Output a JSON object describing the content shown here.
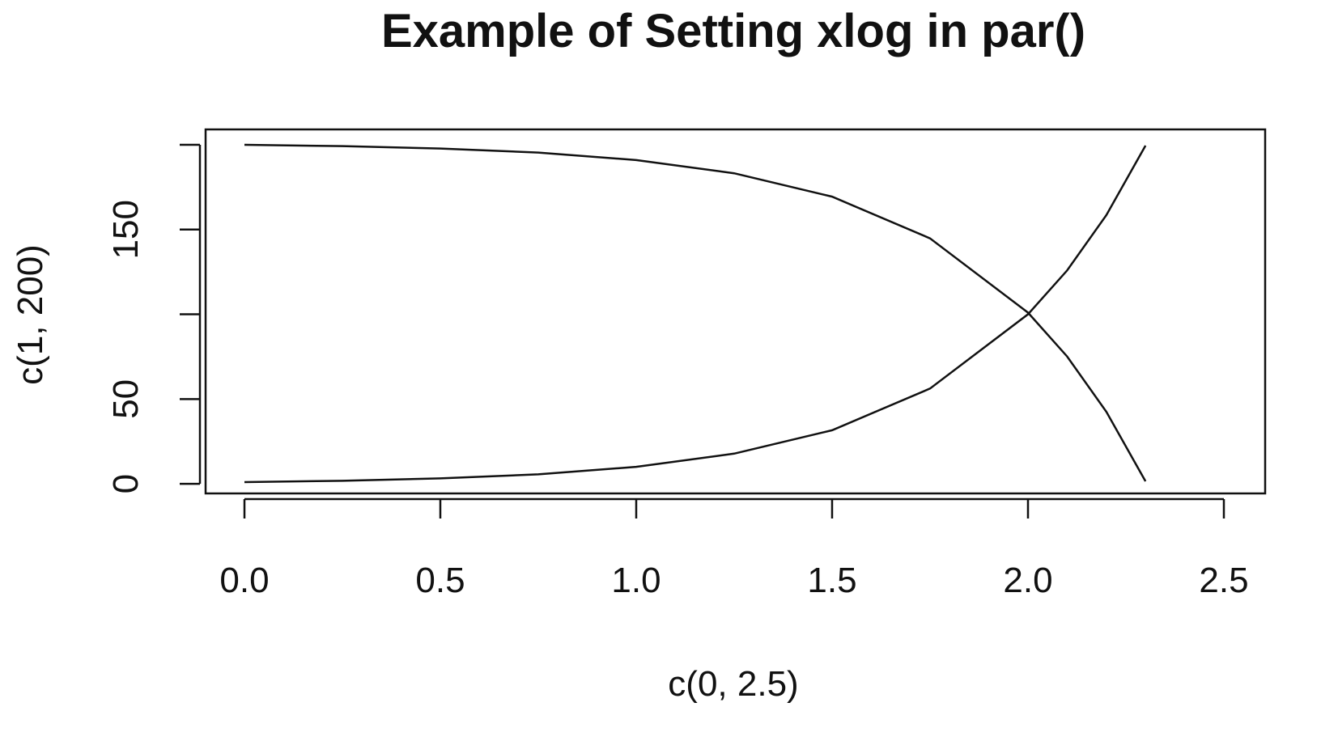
{
  "chart_data": {
    "type": "line",
    "title": "Example of Setting xlog in par()",
    "xlabel": "c(0, 2.5)",
    "ylabel": "c(1, 200)",
    "xlim": [
      0,
      2.5
    ],
    "ylim": [
      1,
      200
    ],
    "x_ticks": [
      "0.0",
      "0.5",
      "1.0",
      "1.5",
      "2.0",
      "2.5"
    ],
    "y_ticks": [
      "0",
      "50",
      "150"
    ],
    "y_tick_values": [
      0,
      50,
      100,
      150,
      200
    ],
    "grid": false,
    "legend": "none",
    "series": [
      {
        "x": [
          0.0,
          0.25,
          0.5,
          0.75,
          1.0,
          1.25,
          1.5,
          1.75,
          2.0,
          2.1,
          2.2,
          2.3
        ],
        "values": [
          1,
          1.8,
          3.2,
          5.6,
          10,
          17.8,
          31.6,
          56.2,
          100,
          125.9,
          158.5,
          199.5
        ]
      },
      {
        "x": [
          0.0,
          0.25,
          0.5,
          0.75,
          1.0,
          1.25,
          1.5,
          1.75,
          2.0,
          2.1,
          2.2,
          2.3
        ],
        "values": [
          200,
          199.2,
          197.8,
          195.4,
          191,
          183.2,
          169.4,
          144.8,
          101,
          75.1,
          42.5,
          1.5
        ]
      }
    ],
    "colors": {
      "line": "#111111",
      "background": "#ffffff"
    }
  }
}
